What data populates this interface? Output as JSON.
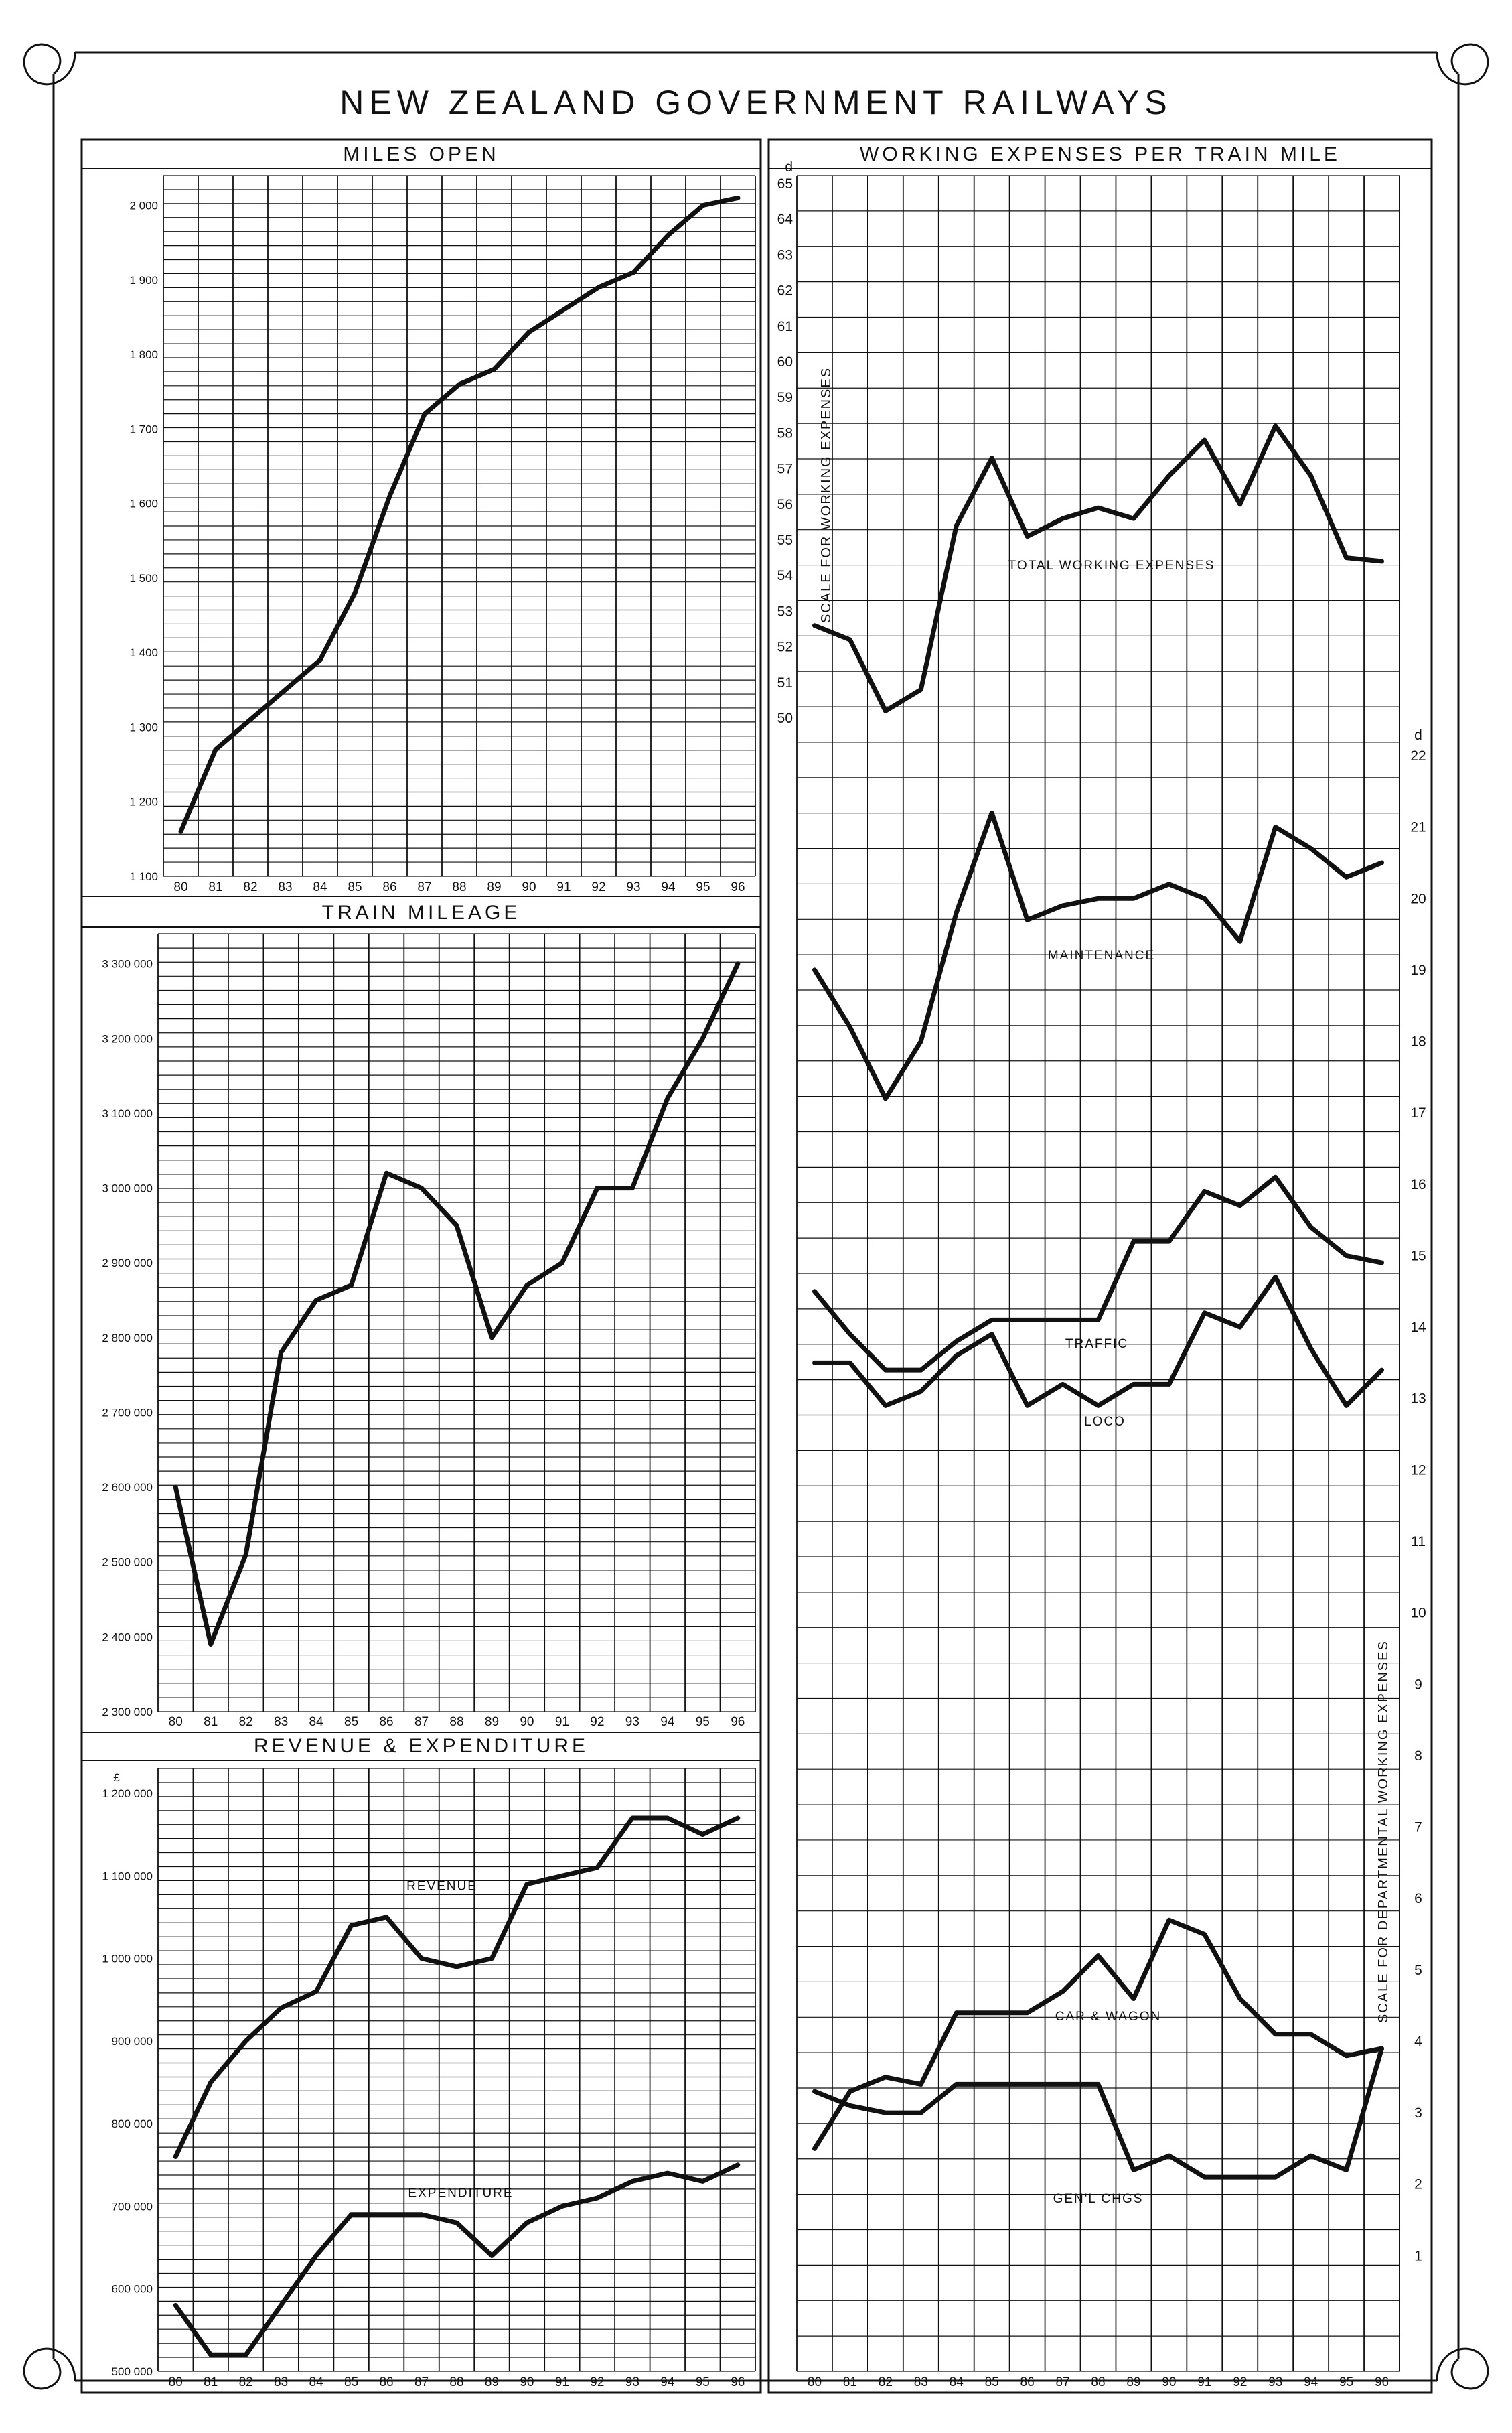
{
  "title": "NEW ZEALAND GOVERNMENT RAILWAYS",
  "chart_data": [
    {
      "type": "line",
      "title": "MILES OPEN",
      "x": [
        "80",
        "81",
        "82",
        "83",
        "84",
        "85",
        "86",
        "87",
        "88",
        "89",
        "90",
        "91",
        "92",
        "93",
        "94",
        "95",
        "96"
      ],
      "y_ticks": [
        "1 100",
        "1 200",
        "1 300",
        "1 400",
        "1 500",
        "1 600",
        "1 700",
        "1 800",
        "1 900",
        "2 000"
      ],
      "ylim": [
        1100,
        2040
      ],
      "grid": true,
      "series": [
        {
          "values": [
            1160,
            1270,
            1310,
            1350,
            1390,
            1480,
            1610,
            1720,
            1760,
            1780,
            1830,
            1860,
            1890,
            1910,
            1960,
            2000,
            2010
          ]
        }
      ]
    },
    {
      "type": "line",
      "title": "TRAIN MILEAGE",
      "x": [
        "80",
        "81",
        "82",
        "83",
        "84",
        "85",
        "86",
        "87",
        "88",
        "89",
        "90",
        "91",
        "92",
        "93",
        "94",
        "95",
        "96"
      ],
      "y_ticks": [
        "2 300 000",
        "2 400 000",
        "2 500 000",
        "2 600 000",
        "2 700 000",
        "2 800 000",
        "2 900 000",
        "3 000 000",
        "3 100 000",
        "3 200 000",
        "3 300 000"
      ],
      "ylim": [
        2300000,
        3340000
      ],
      "grid": true,
      "series": [
        {
          "values": [
            2600000,
            2390000,
            2510000,
            2780000,
            2850000,
            2870000,
            3020000,
            3000000,
            2950000,
            2800000,
            2870000,
            2900000,
            3000000,
            3000000,
            3120000,
            3200000,
            3300000
          ]
        }
      ]
    },
    {
      "type": "line",
      "title": "REVENUE & EXPENDITURE",
      "currency_mark": "£",
      "x": [
        "80",
        "81",
        "82",
        "83",
        "84",
        "85",
        "86",
        "87",
        "88",
        "89",
        "90",
        "91",
        "92",
        "93",
        "94",
        "95",
        "96"
      ],
      "y_ticks": [
        "500 000",
        "600 000",
        "700 000",
        "800 000",
        "900 000",
        "1 000 000",
        "1 100 000",
        "1 200 000"
      ],
      "ylim": [
        500000,
        1230000
      ],
      "grid": true,
      "series": [
        {
          "name": "REVENUE",
          "values": [
            760000,
            850000,
            900000,
            940000,
            960000,
            1040000,
            1050000,
            1000000,
            990000,
            1000000,
            1090000,
            1100000,
            1110000,
            1170000,
            1170000,
            1150000,
            1170000
          ]
        },
        {
          "name": "EXPENDITURE",
          "values": [
            580000,
            520000,
            520000,
            580000,
            640000,
            690000,
            690000,
            690000,
            680000,
            640000,
            680000,
            700000,
            710000,
            730000,
            740000,
            730000,
            750000
          ]
        }
      ]
    },
    {
      "type": "line",
      "title": "WORKING EXPENSES PER TRAIN MILE",
      "x": [
        "80",
        "81",
        "82",
        "83",
        "84",
        "85",
        "86",
        "87",
        "88",
        "89",
        "90",
        "91",
        "92",
        "93",
        "94",
        "95",
        "96"
      ],
      "left_axis": {
        "unit": "d",
        "label": "SCALE FOR WORKING EXPENSES",
        "ticks": [
          "50",
          "51",
          "52",
          "53",
          "54",
          "55",
          "56",
          "57",
          "58",
          "59",
          "60",
          "61",
          "62",
          "63",
          "64",
          "65"
        ],
        "ylim": [
          50,
          65
        ]
      },
      "right_axis": {
        "unit": "d",
        "label": "SCALE FOR DEPARTMENTAL WORKING EXPENSES",
        "ticks": [
          "1",
          "2",
          "3",
          "4",
          "5",
          "6",
          "7",
          "8",
          "9",
          "10",
          "11",
          "12",
          "13",
          "14",
          "15",
          "16",
          "17",
          "18",
          "19",
          "20",
          "21",
          "22"
        ],
        "ylim": [
          0,
          22
        ]
      },
      "grid": true,
      "series": [
        {
          "name": "TOTAL WORKING EXPENSES",
          "axis": "left",
          "values": [
            52.6,
            52.2,
            50.2,
            50.8,
            55.4,
            57.3,
            55.1,
            55.6,
            55.9,
            55.6,
            56.8,
            57.8,
            56.0,
            58.2,
            56.8,
            54.5,
            54.4
          ]
        },
        {
          "name": "MAINTENANCE",
          "axis": "right",
          "values": [
            19.0,
            18.2,
            17.2,
            18.0,
            19.8,
            21.2,
            19.7,
            19.9,
            20.0,
            20.0,
            20.2,
            20.0,
            19.4,
            21.0,
            20.7,
            20.3,
            20.5
          ]
        },
        {
          "name": "TRAFFIC",
          "axis": "right",
          "values": [
            14.5,
            13.9,
            13.4,
            13.4,
            13.8,
            14.1,
            14.1,
            14.1,
            14.1,
            15.2,
            15.2,
            15.9,
            15.7,
            16.1,
            15.4,
            15.0,
            14.9
          ]
        },
        {
          "name": "LOCO",
          "axis": "right",
          "values": [
            13.5,
            13.5,
            12.9,
            13.1,
            13.6,
            13.9,
            12.9,
            13.2,
            12.9,
            13.2,
            13.2,
            14.2,
            14.0,
            14.7,
            13.7,
            12.9,
            13.4
          ]
        },
        {
          "name": "CAR & WAGON",
          "axis": "right",
          "values": [
            2.5,
            3.3,
            3.5,
            3.4,
            4.4,
            4.4,
            4.4,
            4.7,
            5.2,
            4.6,
            5.7,
            5.5,
            4.6,
            4.1,
            4.1,
            3.8,
            3.9
          ]
        },
        {
          "name": "GEN'L CHGS",
          "axis": "right",
          "values": [
            3.3,
            3.1,
            3.0,
            3.0,
            3.4,
            3.4,
            3.4,
            3.4,
            3.4,
            2.2,
            2.4,
            2.1,
            2.1,
            2.1,
            2.4,
            2.2,
            3.9
          ]
        }
      ]
    }
  ]
}
